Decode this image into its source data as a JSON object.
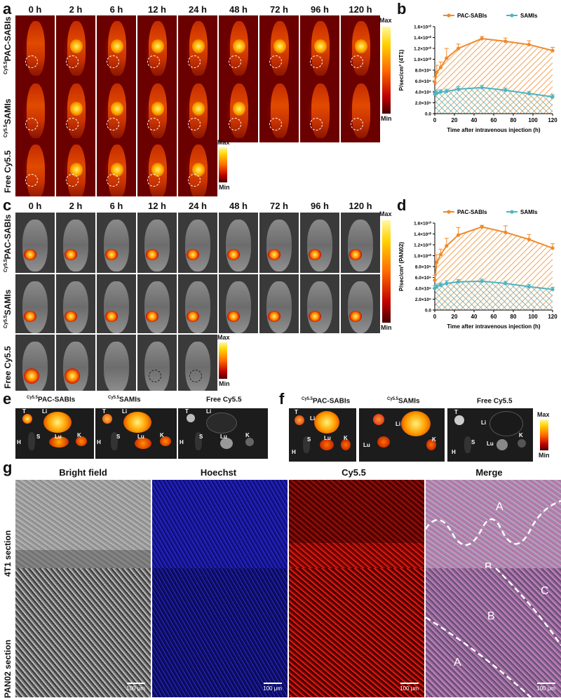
{
  "panel_labels": [
    "a",
    "b",
    "c",
    "d",
    "e",
    "f",
    "g"
  ],
  "timepoints": [
    "0 h",
    "2 h",
    "6 h",
    "12 h",
    "24 h",
    "48 h",
    "72 h",
    "96 h",
    "120 h"
  ],
  "ivis_rows_a": [
    {
      "sup": "Cy5.5",
      "name": "PAC-SABIs"
    },
    {
      "sup": "Cy5.5",
      "name": "SAMIs"
    },
    {
      "sup": "",
      "name": "Free Cy5.5"
    }
  ],
  "ivis_rows_c": [
    {
      "sup": "Cy5.5",
      "name": "PAC-SABIs"
    },
    {
      "sup": "Cy5.5",
      "name": "SAMIs"
    },
    {
      "sup": "",
      "name": "Free Cy5.5"
    }
  ],
  "colorbar": {
    "max": "Max",
    "min": "Min"
  },
  "organs": {
    "panel_e": [
      {
        "sup": "Cy5.5",
        "name": "PAC-SABIs"
      },
      {
        "sup": "Cy5.5",
        "name": "SAMIs"
      },
      {
        "sup": "",
        "name": "Free Cy5.5"
      }
    ],
    "panel_f": [
      {
        "sup": "Cy5.5",
        "name": "PAC-SABIs"
      },
      {
        "sup": "Cy5.5",
        "name": "SAMIs"
      },
      {
        "sup": "",
        "name": "Free Cy5.5"
      }
    ],
    "tags": [
      "T",
      "Li",
      "H",
      "S",
      "Lu",
      "K"
    ]
  },
  "microscopy": {
    "columns": [
      "Bright field",
      "Hoechst",
      "Cy5.5",
      "Merge"
    ],
    "rows": [
      "4T1 section",
      "PAN02 section"
    ],
    "scale": "100 μm",
    "regions_row1": [
      "A",
      "B"
    ],
    "regions_row2": [
      "A",
      "B",
      "C"
    ]
  },
  "chart_data": [
    {
      "type": "area",
      "panel": "b",
      "xlabel": "Time after intravenous injection (h)",
      "ylabel": "P/sec/cm² (4T1)",
      "xlim": [
        0,
        120
      ],
      "ylim": [
        0,
        16000000000
      ],
      "xticks": [
        0,
        20,
        40,
        60,
        80,
        100,
        120
      ],
      "yticks": [
        "0.0",
        "2.0×10⁹",
        "4.0×10⁹",
        "6.0×10⁹",
        "8.0×10⁹",
        "1.0×10¹⁰",
        "1.2×10¹⁰",
        "1.4×10¹⁰",
        "1.6×10¹⁰"
      ],
      "x": [
        0,
        2,
        6,
        12,
        24,
        48,
        72,
        96,
        120
      ],
      "series": [
        {
          "name": "PAC-SABIs",
          "color": "#f08a2b",
          "values": [
            5800000000.0,
            7600000000.0,
            8500000000.0,
            10200000000.0,
            12000000000.0,
            13800000000.0,
            13300000000.0,
            12700000000.0,
            11600000000.0
          ],
          "errors": [
            1000000000.0,
            1300000000.0,
            1000000000.0,
            1800000000.0,
            800000000.0,
            400000000.0,
            600000000.0,
            700000000.0,
            600000000.0
          ]
        },
        {
          "name": "SAMIs",
          "color": "#4fb4c0",
          "values": [
            3600000000.0,
            3800000000.0,
            4000000000.0,
            4100000000.0,
            4500000000.0,
            4800000000.0,
            4300000000.0,
            3700000000.0,
            3100000000.0
          ],
          "errors": [
            500000000.0,
            500000000.0,
            400000000.0,
            400000000.0,
            500000000.0,
            400000000.0,
            400000000.0,
            400000000.0,
            400000000.0
          ]
        }
      ],
      "legend": "top"
    },
    {
      "type": "area",
      "panel": "d",
      "xlabel": "Time after intravenous injection (h)",
      "ylabel": "P/sec/cm² (PAN02)",
      "xlim": [
        0,
        120
      ],
      "ylim": [
        0,
        16000000000
      ],
      "xticks": [
        0,
        20,
        40,
        60,
        80,
        100,
        120
      ],
      "yticks": [
        "0.0",
        "2.0×10⁹",
        "4.0×10⁹",
        "6.0×10⁹",
        "8.0×10⁹",
        "1.0×10¹⁰",
        "1.2×10¹⁰",
        "1.4×10¹⁰",
        "1.6×10¹⁰"
      ],
      "x": [
        0,
        2,
        6,
        12,
        24,
        48,
        72,
        96,
        120
      ],
      "series": [
        {
          "name": "PAC-SABIs",
          "color": "#f08a2b",
          "values": [
            5500000000.0,
            8800000000.0,
            10200000000.0,
            11800000000.0,
            13800000000.0,
            15300000000.0,
            14300000000.0,
            13000000000.0,
            11400000000.0
          ],
          "errors": [
            900000000.0,
            1400000000.0,
            1000000000.0,
            1400000000.0,
            1400000000.0,
            300000000.0,
            1200000000.0,
            900000000.0,
            800000000.0
          ]
        },
        {
          "name": "SAMIs",
          "color": "#4fb4c0",
          "values": [
            4000000000.0,
            4300000000.0,
            4600000000.0,
            4900000000.0,
            5200000000.0,
            5300000000.0,
            4900000000.0,
            4300000000.0,
            3800000000.0
          ],
          "errors": [
            500000000.0,
            500000000.0,
            400000000.0,
            500000000.0,
            400000000.0,
            400000000.0,
            400000000.0,
            400000000.0,
            400000000.0
          ]
        }
      ],
      "legend": "top"
    }
  ]
}
